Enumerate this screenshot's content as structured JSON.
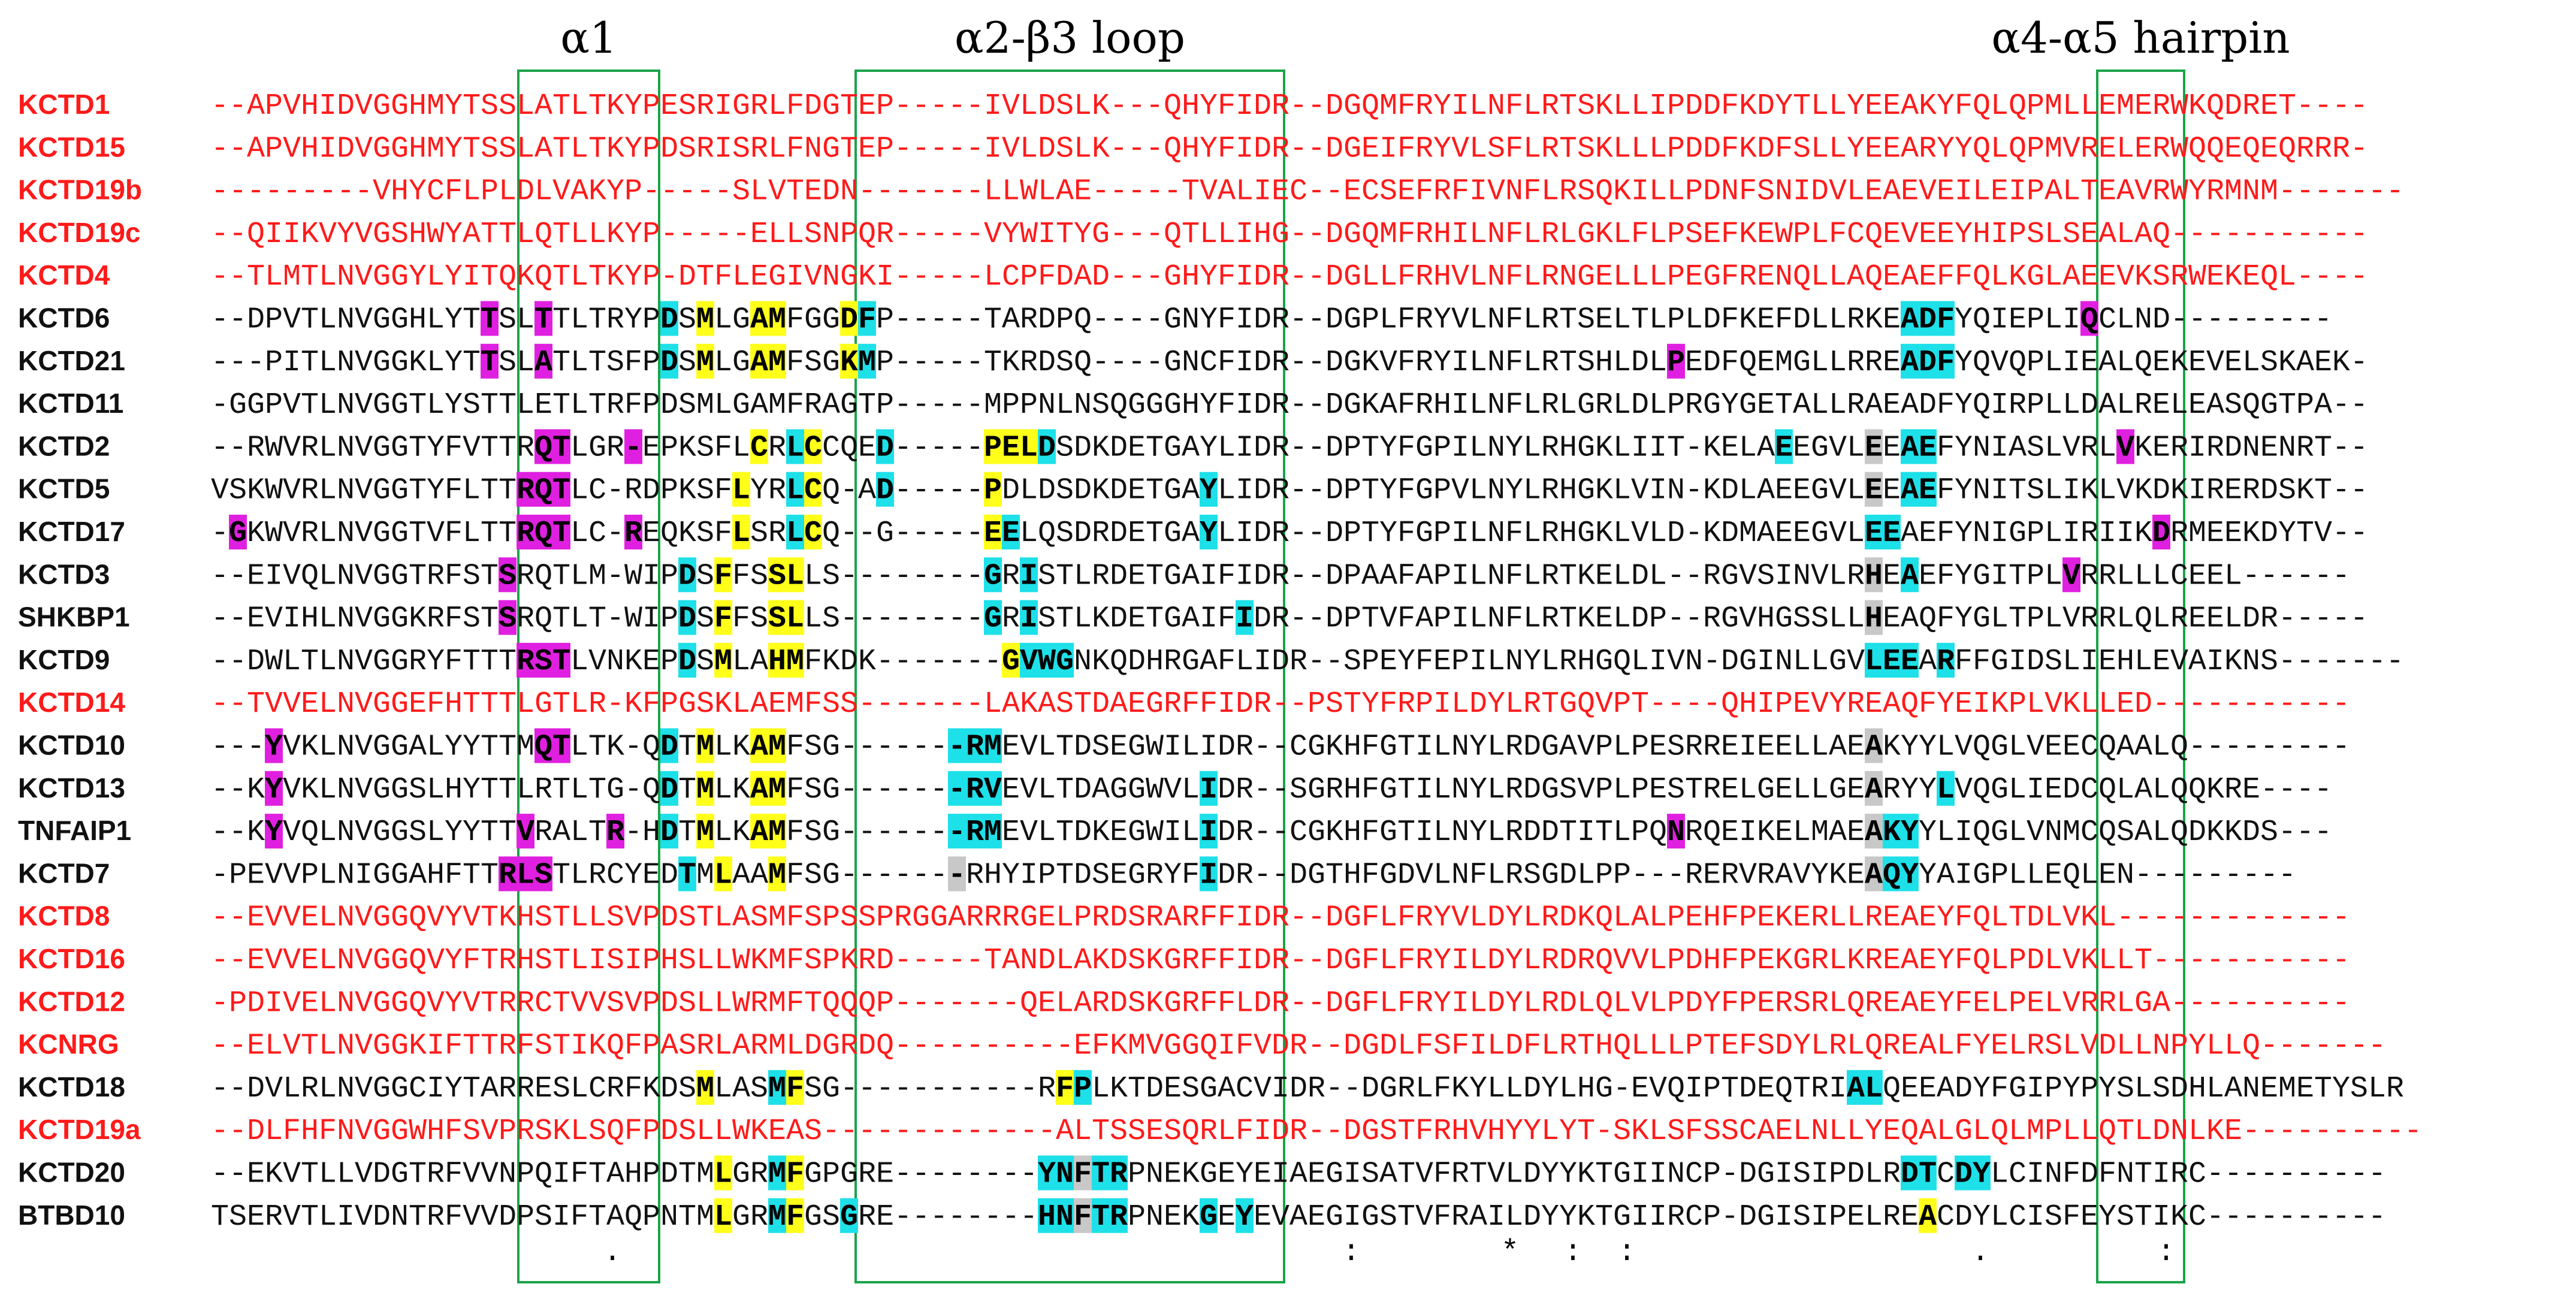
{
  "figure": {
    "regions": [
      {
        "label": "α1",
        "start": 70,
        "end": 79
      },
      {
        "label": "α2-β3 loop",
        "start": 108,
        "end": 200
      },
      {
        "label": "α4-α5 hairpin",
        "start": 350,
        "end": 357
      }
    ],
    "colors": {
      "red": "#ff1a1a",
      "black": "#111111",
      "box": "#1aa34a",
      "magenta": "#e020e0",
      "cyan": "#1ee0e8",
      "yellow": "#ffff1a",
      "gray": "#c8c8c8"
    },
    "rows": [
      {
        "name": "KCTD1",
        "color": "red",
        "seq": "--APVHIDVGGHMYTSSLATLTKYPESRIGRLFDGTEP-----IVLDSLK---QHYFIDR--DGQMFRYILNFLRTSKLLIPDDFKDYTLLYEEAKYFQLQPMLLEMERWKQDRET----"
      },
      {
        "name": "KCTD15",
        "color": "red",
        "seq": "--APVHIDVGGHMYTSSLATLTKYPDSRISRLFNGTEP-----IVLDSLK---QHYFIDR--DGEIFRYVLSFLRTSKLLLPDDFKDFSLLYEEARYYQLQPMVRELERWQQEQEQRRR-"
      },
      {
        "name": "KCTD19b",
        "color": "red",
        "seq": "---------VHYCFLPLDLVAKYP-----SLVTEDN-------LLWLAE-----TVALIEC--ECSEFRFIVNFLRSQKILLPDNFSNIDVLEAEVEILEIPALTEAVRWYRMNM-------"
      },
      {
        "name": "KCTD19c",
        "color": "red",
        "seq": "--QIIKVYVGSHWYATTLQTLLKYP-----ELLSNPQR-----VYWITYG---QTLLIHG--DGQMFRHILNFLRLGKLFLPSEFKEWPLFCQEVEEYHIPSLSEALAQ-----------"
      },
      {
        "name": "KCTD4",
        "color": "red",
        "seq": "--TLMTLNVGGYLYITQKQTLTKYP-DTFLEGIVNGKI-----LCPFDAD---GHYFIDR--DGLLFRHVLNFLRNGELLLPEGFRENQLLAQEAEFFQLKGLAEEVKSRWEKEQL----"
      },
      {
        "name": "KCTD6",
        "color": "black",
        "seq": "--DPVTLNVGGHLYTTSLTTLTRYPDSMLGAMFGGDFP-----TARDPQ----GNYFIDR--DGPLFRYVLNFLRTSELTLPLDFKEFDLLRKEADFYQIEPLIQCLND---------"
      },
      {
        "name": "KCTD21",
        "color": "black",
        "seq": "---PITLNVGGKLYTTSLATLTSFPDSMLGAMFSGKMP-----TKRDSQ----GNCFIDR--DGKVFRYILNFLRTSHLDLPEDFQEMGLLRREADFYQVQPLIEALQEKEVELSKAEK-"
      },
      {
        "name": "KCTD11",
        "color": "black",
        "seq": "-GGPVTLNVGGTLYSTTLETLTRFPDSMLGAMFRAGTP-----MPPNLNSQGGGHYFIDR--DGKAFRHILNFLRLGRLDLPRGYGETALLRAEADFYQIRPLLDALRELEASQGTPA--"
      },
      {
        "name": "KCTD2",
        "color": "black",
        "seq": "--RWVRLNVGGTYFVTTRQTLGR-EPKSFLCRLCCQED-----PELDSDKDETGAYLIDR--DPTYFGPILNYLRHGKLIIT-KELAEEGVLEEAEFYNIASLVRLVKERIRDNENRT--"
      },
      {
        "name": "KCTD5",
        "color": "black",
        "seq": "VSKWVRLNVGGTYFLTTRQTLC-RDPKSFLYRLCQ-AD-----PDLDSDKDETGAYLIDR--DPTYFGPVLNYLRHGKLVIN-KDLAEEGVLEEAEFYNITSLIKLVKDKIRERDSKT--"
      },
      {
        "name": "KCTD17",
        "color": "black",
        "seq": "-GKWVRLNVGGTVFLTTRQTLC-REQKSFLSRLCQ--G-----EELQSDRDETGAYLIDR--DPTYFGPILNFLRHGKLVLD-KDMAEEGVLEEAEFYNIGPLIRIIKDRMEEKDYTV--"
      },
      {
        "name": "KCTD3",
        "color": "black",
        "seq": "--EIVQLNVGGTRFSTSRQTLM-WIPDSFFSSLLS--------GRISTLRDETGAIFIDR--DPAAFAPILNFLRTKELDL--RGVSINVLRHEAEFYGITPLVRRLLLCEEL------"
      },
      {
        "name": "SHKBP1",
        "color": "black",
        "seq": "--EVIHLNVGGKRFSTSRQTLT-WIPDSFFSSLLS--------GRISTLKDETGAIFIDR--DPTVFAPILNFLRTKELDP--RGVHGSSLLHEAQFYGLTPLVRRLQLREELDR-----"
      },
      {
        "name": "KCTD9",
        "color": "black",
        "seq": "--DWLTLNVGGRYFTTTRSTLVNKEPDSMLAHMFKDK-------GVWGNKQDHRGAFLIDR--SPEYFEPILNYLRHGQLIVN-DGINLLGVLEEARFFGIDSLIEHLEVAIKNS-------"
      },
      {
        "name": "KCTD14",
        "color": "red",
        "seq": "--TVVELNVGGEFHTTTLGTLR-KFPGSKLAEMFSS-------LAKASTDAEGRFFIDR--PSTYFRPILDYLRTGQVPT----QHIPEVYREAQFYEIKPLVKLLED-----------"
      },
      {
        "name": "KCTD10",
        "color": "black",
        "seq": "---YVKLNVGGALYYTTMQTLTK-QDTMLKAMFSG-------RMEVLTDSEGWILIDR--CGKHFGTILNYLRDGAVPLPESRREIEELLAEAKYYLVQGLVEECQAALQ---------"
      },
      {
        "name": "KCTD13",
        "color": "black",
        "seq": "--KYVKLNVGGSLHYTTLRTLTG-QDTMLKAMFSG-------RVEVLTDAGGWVLIDR--SGRHFGTILNYLRDGSVPLPESTRELGELLGEARYYLVQGLIEDCQLALQQKRE----"
      },
      {
        "name": "TNFAIP1",
        "color": "black",
        "seq": "--KYVQLNVGGSLYYTTVRALTR-HDTMLKAMFSG-------RMEVLTDKEGWILIDR--CGKHFGTILNYLRDDTITLPQNRQEIKELMAEAKYYLIQGLVNMCQSALQDKKDS---"
      },
      {
        "name": "KCTD7",
        "color": "black",
        "seq": "-PEVVPLNIGGAHFTTRLSTLRCYEDTMLAAMFSG-------RHYIPTDSEGRYFIDR--DGTHFGDVLNFLRSGDLPP---RERVRAVYKEAQYYAIGPLLEQLEN---------"
      },
      {
        "name": "KCTD8",
        "color": "red",
        "seq": "--EVVELNVGGQVYVTKHSTLLSVPDSTLASMFSPSSPRGGARRRGELPRDSRARFFIDR--DGFLFRYVLDYLRDKQLALPEHFPEKERLLREAEYFQLTDLVKL-------------"
      },
      {
        "name": "KCTD16",
        "color": "red",
        "seq": "--EVVELNVGGQVYFTRHSTLISIPHSLLWKMFSPKRD-----TANDLAKDSKGRFFIDR--DGFLFRYILDYLRDRQVVLPDHFPEKGRLKREAEYFQLPDLVKLLT-----------"
      },
      {
        "name": "KCTD12",
        "color": "red",
        "seq": "-PDIVELNVGGQVYVTRRCTVVSVPDSLLWRMFTQQQP-------QELARDSKGRFFLDR--DGFLFRYILDYLRDLQLVLPDYFPERSRLQREAEYFELPELVRRLGA----------"
      },
      {
        "name": "KCNRG",
        "color": "red",
        "seq": "--ELVTLNVGGKIFTTRFSTIKQFPASRLARMLDGRDQ----------EFKMVGGQIFVDR--DGDLFSFILDFLRTHQLLLPTEFSDYLRLQREALFYELRSLVDLLNPYLLQ-------"
      },
      {
        "name": "KCTD18",
        "color": "black",
        "seq": "--DVLRLNVGGCIYTARRESLCRFKDSMLASMFSG-----------RFPLKTDESGACVIDR--DGRLFKYLLDYLHG-EVQIPTDEQTRIALQEEADYFGIPYPYSLSDHLANEMETYSLR"
      },
      {
        "name": "KCTD19a",
        "color": "red",
        "seq": "--DLFHFNVGGWHFSVPRSKLSQFPDSLLWKEAS-------------ALTSSESQRLFIDR--DGSTFRHVHYYLYT-SKLSFSSCAELNLLYEQALGLQLMPLLQTLDNLKE----------"
      },
      {
        "name": "KCTD20",
        "color": "black",
        "seq": "--EKVTLLVDGTRFVVNPQIFTAHPDTMLGRMFGPGRE--------YNFTRPNEKGEYEIAEGISATVFRTVLDYYKTGIINCP-DGISIPDLRDTCDYLCINFDFNTIRC----------"
      },
      {
        "name": "BTBD10",
        "color": "black",
        "seq": "TSERVTLIVDNTRFVVDPSIFTAQPNTMLGRMFGSGRE--------HNFTRPNEKGEYEVAEGIGSTVFRAILDYYKTGIIRCP-DGISIPELREACDYLCISFEYSTIKC----------"
      }
    ],
    "consensus": [
      {
        "col": 36,
        "char": "."
      },
      {
        "col": 216,
        "char": ":"
      },
      {
        "col": 256,
        "char": "*"
      },
      {
        "col": 268,
        "char": ":"
      },
      {
        "col": 280,
        "char": ":"
      },
      {
        "col": 330,
        "char": "."
      },
      {
        "col": 362,
        "char": ":"
      }
    ]
  }
}
